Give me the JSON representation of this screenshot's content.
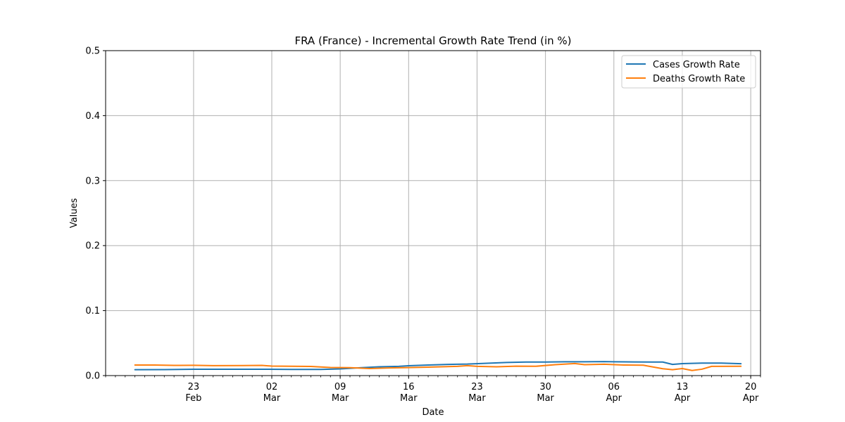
{
  "chart_data": {
    "type": "line",
    "title": "FRA (France) - Incremental Growth Rate Trend (in %)",
    "xlabel": "Date",
    "ylabel": "Values",
    "ylim": [
      0,
      0.5
    ],
    "yticks": [
      "0.0",
      "0.1",
      "0.2",
      "0.3",
      "0.4",
      "0.5"
    ],
    "xlim": [
      "2020-02-14",
      "2020-04-21"
    ],
    "xticks": [
      {
        "date": "2020-02-23",
        "day": "23",
        "month": "Feb"
      },
      {
        "date": "2020-03-02",
        "day": "02",
        "month": "Mar"
      },
      {
        "date": "2020-03-09",
        "day": "09",
        "month": "Mar"
      },
      {
        "date": "2020-03-16",
        "day": "16",
        "month": "Mar"
      },
      {
        "date": "2020-03-23",
        "day": "23",
        "month": "Mar"
      },
      {
        "date": "2020-03-30",
        "day": "30",
        "month": "Mar"
      },
      {
        "date": "2020-04-06",
        "day": "06",
        "month": "Apr"
      },
      {
        "date": "2020-04-13",
        "day": "13",
        "month": "Apr"
      },
      {
        "date": "2020-04-20",
        "day": "20",
        "month": "Apr"
      }
    ],
    "grid": true,
    "legend_position": "top-right",
    "series": [
      {
        "name": "Cases Growth Rate",
        "color": "#1f77b4",
        "points": [
          [
            "2020-02-17",
            0.009
          ],
          [
            "2020-02-20",
            0.0092
          ],
          [
            "2020-02-23",
            0.0097
          ],
          [
            "2020-02-26",
            0.0098
          ],
          [
            "2020-03-01",
            0.0098
          ],
          [
            "2020-03-04",
            0.0094
          ],
          [
            "2020-03-07",
            0.0095
          ],
          [
            "2020-03-09",
            0.0103
          ],
          [
            "2020-03-11",
            0.012
          ],
          [
            "2020-03-13",
            0.0135
          ],
          [
            "2020-03-15",
            0.0142
          ],
          [
            "2020-03-16",
            0.0152
          ],
          [
            "2020-03-18",
            0.0163
          ],
          [
            "2020-03-20",
            0.0172
          ],
          [
            "2020-03-22",
            0.0177
          ],
          [
            "2020-03-24",
            0.019
          ],
          [
            "2020-03-26",
            0.0202
          ],
          [
            "2020-03-28",
            0.0208
          ],
          [
            "2020-03-30",
            0.0209
          ],
          [
            "2020-04-01",
            0.0213
          ],
          [
            "2020-04-03",
            0.0212
          ],
          [
            "2020-04-05",
            0.0215
          ],
          [
            "2020-04-06",
            0.0213
          ],
          [
            "2020-04-08",
            0.021
          ],
          [
            "2020-04-10",
            0.0209
          ],
          [
            "2020-04-11",
            0.0208
          ],
          [
            "2020-04-12",
            0.0172
          ],
          [
            "2020-04-13",
            0.0184
          ],
          [
            "2020-04-15",
            0.0192
          ],
          [
            "2020-04-17",
            0.0192
          ],
          [
            "2020-04-19",
            0.0183
          ]
        ]
      },
      {
        "name": "Deaths Growth Rate",
        "color": "#ff7f0e",
        "points": [
          [
            "2020-02-17",
            0.0162
          ],
          [
            "2020-02-19",
            0.0163
          ],
          [
            "2020-02-21",
            0.0157
          ],
          [
            "2020-02-23",
            0.0158
          ],
          [
            "2020-02-25",
            0.0153
          ],
          [
            "2020-02-28",
            0.0154
          ],
          [
            "2020-03-01",
            0.0157
          ],
          [
            "2020-03-02",
            0.0146
          ],
          [
            "2020-03-04",
            0.0143
          ],
          [
            "2020-03-06",
            0.0141
          ],
          [
            "2020-03-08",
            0.0124
          ],
          [
            "2020-03-10",
            0.0122
          ],
          [
            "2020-03-12",
            0.0108
          ],
          [
            "2020-03-14",
            0.0118
          ],
          [
            "2020-03-16",
            0.0123
          ],
          [
            "2020-03-18",
            0.013
          ],
          [
            "2020-03-21",
            0.0142
          ],
          [
            "2020-03-22",
            0.0153
          ],
          [
            "2020-03-23",
            0.0142
          ],
          [
            "2020-03-25",
            0.0135
          ],
          [
            "2020-03-27",
            0.0145
          ],
          [
            "2020-03-29",
            0.0143
          ],
          [
            "2020-03-31",
            0.0168
          ],
          [
            "2020-04-02",
            0.0185
          ],
          [
            "2020-04-03",
            0.0168
          ],
          [
            "2020-04-05",
            0.0175
          ],
          [
            "2020-04-07",
            0.0162
          ],
          [
            "2020-04-09",
            0.016
          ],
          [
            "2020-04-11",
            0.0106
          ],
          [
            "2020-04-12",
            0.009
          ],
          [
            "2020-04-13",
            0.0108
          ],
          [
            "2020-04-14",
            0.0078
          ],
          [
            "2020-04-15",
            0.0098
          ],
          [
            "2020-04-16",
            0.0142
          ],
          [
            "2020-04-19",
            0.0143
          ]
        ]
      }
    ]
  }
}
